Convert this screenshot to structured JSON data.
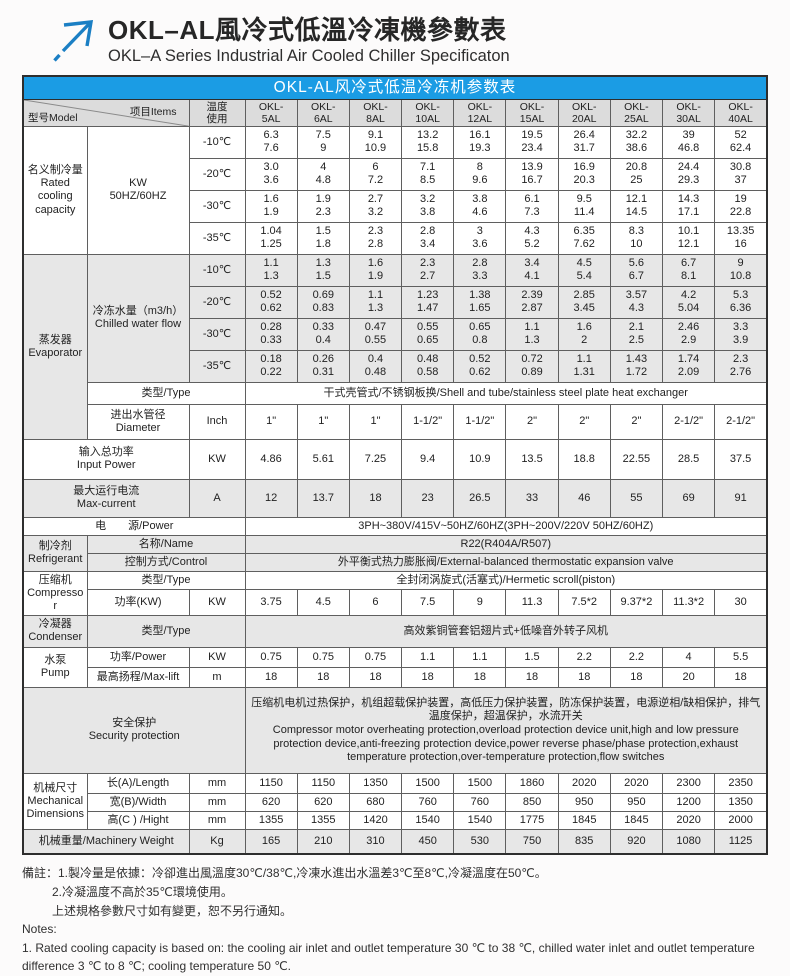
{
  "page": {
    "title_cn": "OKL–AL風冷式低溫冷凍機參數表",
    "title_en": "OKL–A Series Industrial Air Cooled Chiller Specificaton",
    "banner": "OKL-AL风冷式低温冷冻机参数表"
  },
  "colors": {
    "banner_bg": "#1b9ce4",
    "header_bg": "#dcdcdc",
    "gray_row": "#e7e7e7",
    "logo_blue": "#1b7fc4"
  },
  "header": {
    "model_label": "型号Model",
    "items_label": "项目Items",
    "temp_label": "温度\n使用",
    "models": [
      "OKL-\n5AL",
      "OKL-\n6AL",
      "OKL-\n8AL",
      "OKL-\n10AL",
      "OKL-\n12AL",
      "OKL-\n15AL",
      "OKL-\n20AL",
      "OKL-\n25AL",
      "OKL-\n30AL",
      "OKL-\n40AL"
    ]
  },
  "cooling": {
    "model": "名义制冷量\nRated\ncooling\ncapacity",
    "item": "KW\n50HZ/60HZ",
    "rows": [
      {
        "temp": "-10℃",
        "values": [
          "6.3\n7.6",
          "7.5\n9",
          "9.1\n10.9",
          "13.2\n15.8",
          "16.1\n19.3",
          "19.5\n23.4",
          "26.4\n31.7",
          "32.2\n38.6",
          "39\n46.8",
          "52\n62.4"
        ]
      },
      {
        "temp": "-20℃",
        "values": [
          "3.0\n3.6",
          "4\n4.8",
          "6\n7.2",
          "7.1\n8.5",
          "8\n9.6",
          "13.9\n16.7",
          "16.9\n20.3",
          "20.8\n25",
          "24.4\n29.3",
          "30.8\n37"
        ]
      },
      {
        "temp": "-30℃",
        "values": [
          "1.6\n1.9",
          "1.9\n2.3",
          "2.7\n3.2",
          "3.2\n3.8",
          "3.8\n4.6",
          "6.1\n7.3",
          "9.5\n11.4",
          "12.1\n14.5",
          "14.3\n17.1",
          "19\n22.8"
        ]
      },
      {
        "temp": "-35℃",
        "values": [
          "1.04\n1.25",
          "1.5\n1.8",
          "2.3\n2.8",
          "2.8\n3.4",
          "3\n3.6",
          "4.3\n5.2",
          "6.35\n7.62",
          "8.3\n10",
          "10.1\n12.1",
          "13.35\n16"
        ]
      }
    ]
  },
  "evaporator": {
    "model": "蒸发器\nEvaporator",
    "flow_item": "冷冻水量（m3/h）\nChilled water flow",
    "rows": [
      {
        "temp": "-10℃",
        "values": [
          "1.1\n1.3",
          "1.3\n1.5",
          "1.6\n1.9",
          "2.3\n2.7",
          "2.8\n3.3",
          "3.4\n4.1",
          "4.5\n5.4",
          "5.6\n6.7",
          "6.7\n8.1",
          "9\n10.8"
        ]
      },
      {
        "temp": "-20℃",
        "values": [
          "0.52\n0.62",
          "0.69\n0.83",
          "1.1\n1.3",
          "1.23\n1.47",
          "1.38\n1.65",
          "2.39\n2.87",
          "2.85\n3.45",
          "3.57\n4.3",
          "4.2\n5.04",
          "5.3\n6.36"
        ]
      },
      {
        "temp": "-30℃",
        "values": [
          "0.28\n0.33",
          "0.33\n0.4",
          "0.47\n0.55",
          "0.55\n0.65",
          "0.65\n0.8",
          "1.1\n1.3",
          "1.6\n2",
          "2.1\n2.5",
          "2.46\n2.9",
          "3.3\n3.9"
        ]
      },
      {
        "temp": "-35℃",
        "values": [
          "0.18\n0.22",
          "0.26\n0.31",
          "0.4\n0.48",
          "0.48\n0.58",
          "0.52\n0.62",
          "0.72\n0.89",
          "1.1\n1.31",
          "1.43\n1.72",
          "1.74\n2.09",
          "2.3\n2.76"
        ]
      }
    ],
    "type_label": "类型/Type",
    "type_value": "干式壳管式/不锈钢板换/Shell and tube/stainless steel plate heat exchanger",
    "diameter_label": "进出水管径\nDiameter",
    "diameter_unit": "Inch",
    "diameter_values": [
      "1\"",
      "1\"",
      "1\"",
      "1-1/2\"",
      "1-1/2\"",
      "2\"",
      "2\"",
      "2\"",
      "2-1/2\"",
      "2-1/2\""
    ]
  },
  "input_power": {
    "label": "输入总功率\nInput Power",
    "unit": "KW",
    "values": [
      "4.86",
      "5.61",
      "7.25",
      "9.4",
      "10.9",
      "13.5",
      "18.8",
      "22.55",
      "28.5",
      "37.5"
    ]
  },
  "max_current": {
    "label": "最大运行电流\nMax-current",
    "unit": "A",
    "values": [
      "12",
      "13.7",
      "18",
      "23",
      "26.5",
      "33",
      "46",
      "55",
      "69",
      "91"
    ]
  },
  "power_supply": {
    "label": "电　　源/Power",
    "value": "3PH~380V/415V~50HZ/60HZ(3PH~200V/220V  50HZ/60HZ)"
  },
  "refrigerant": {
    "model": "制冷剂\nRefrigerant",
    "name_label": "名称/Name",
    "name_value": "R22(R404A/R507)",
    "control_label": "控制方式/Control",
    "control_value": "外平衡式热力膨胀阀/External-balanced thermostatic expansion valve"
  },
  "compressor": {
    "model": "压缩机\nCompressor",
    "type_label": "类型/Type",
    "type_value": "全封闭涡旋式(活塞式)/Hermetic scroll(piston)",
    "power_label": "功率(KW)",
    "power_unit": "KW",
    "power_values": [
      "3.75",
      "4.5",
      "6",
      "7.5",
      "9",
      "11.3",
      "7.5*2",
      "9.37*2",
      "11.3*2",
      "30"
    ]
  },
  "condenser": {
    "model": "冷凝器\nCondenser",
    "type_label": "类型/Type",
    "type_value": "高效紫铜管套铝翅片式+低噪音外转子风机"
  },
  "pump": {
    "model": "水泵\nPump",
    "power_label": "功率/Power",
    "power_unit": "KW",
    "power_values": [
      "0.75",
      "0.75",
      "0.75",
      "1.1",
      "1.1",
      "1.5",
      "2.2",
      "2.2",
      "4",
      "5.5"
    ],
    "lift_label": "最高扬程/Max-lift",
    "lift_unit": "m",
    "lift_values": [
      "18",
      "18",
      "18",
      "18",
      "18",
      "18",
      "18",
      "18",
      "20",
      "18"
    ]
  },
  "security": {
    "label": "安全保护\nSecurity protection",
    "value_cn": "压缩机电机过热保护，机组超载保护装置，高低压力保护装置，防冻保护装置，电源逆相/缺相保护，排气温度保护，超温保护，水流开关",
    "value_en": "Compressor motor overheating protection,overload protection device unit,high and low pressure protection device,anti-freezing protection device,power reverse phase/phase protection,exhaust temperature protection,over-temperature protection,flow switches"
  },
  "dimensions": {
    "model": "机械尺寸\nMechanical\nDimensions",
    "rows": [
      {
        "label": "长(A)/Length",
        "unit": "mm",
        "values": [
          "1150",
          "1150",
          "1350",
          "1500",
          "1500",
          "1860",
          "2020",
          "2020",
          "2300",
          "2350"
        ]
      },
      {
        "label": "宽(B)/Width",
        "unit": "mm",
        "values": [
          "620",
          "620",
          "680",
          "760",
          "760",
          "850",
          "950",
          "950",
          "1200",
          "1350"
        ]
      },
      {
        "label": "高(C ) /Hight",
        "unit": "mm",
        "values": [
          "1355",
          "1355",
          "1420",
          "1540",
          "1540",
          "1775",
          "1845",
          "1845",
          "2020",
          "2000"
        ]
      }
    ]
  },
  "weight": {
    "label": "机械重量/Machinery Weight",
    "unit": "Kg",
    "values": [
      "165",
      "210",
      "310",
      "450",
      "530",
      "750",
      "835",
      "920",
      "1080",
      "1125"
    ]
  },
  "notes": {
    "cn1": "備註：1.製冷量是依據：冷卻進出風溫度30℃/38℃,冷凍水進出水溫差3℃至8℃,冷凝溫度在50℃。",
    "cn2": "2.冷凝溫度不高於35℃環境使用。",
    "cn3": "上述規格參數尺寸如有變更，恕不另行通知。",
    "en_label": "Notes:",
    "en1": "1. Rated cooling capacity is based on: the cooling air inlet and outlet temperature 30 ℃ to 38 ℃, chilled water inlet and outlet temperature difference 3 ℃ to 8 ℃; cooling temperature 50 ℃."
  }
}
